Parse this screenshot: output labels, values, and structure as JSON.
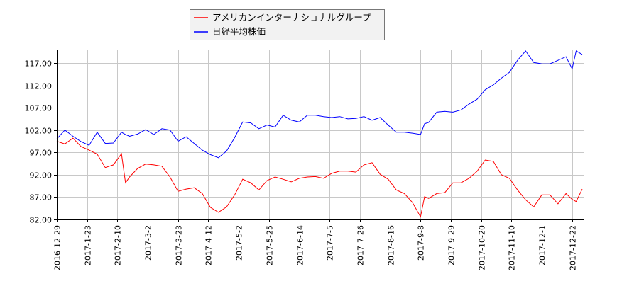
{
  "chart_data": {
    "type": "line",
    "title": "",
    "xlabel": "",
    "ylabel": "",
    "ylim": [
      82,
      120
    ],
    "xlim": [
      0,
      260.7
    ],
    "grid": true,
    "legend_position": "top-center",
    "yticks": [
      82,
      87,
      92,
      97,
      102,
      107,
      112,
      117
    ],
    "ytick_labels": [
      "82.00",
      "87.00",
      "92.00",
      "97.00",
      "102.00",
      "107.00",
      "112.00",
      "117.00"
    ],
    "xticks": [
      0,
      15,
      30,
      45,
      60,
      75,
      90,
      105,
      120,
      135,
      150,
      165,
      180,
      195,
      210,
      225,
      240,
      255
    ],
    "xtick_labels": [
      "2016-12-29",
      "2017-1-23",
      "2017-2-10",
      "2017-3-2",
      "2017-3-23",
      "2017-4-12",
      "2017-5-2",
      "2017-5-25",
      "2017-6-14",
      "2017-7-5",
      "2017-7-26",
      "2017-8-16",
      "2017-9-8",
      "2017-9-29",
      "2017-10-20",
      "2017-11-10",
      "2017-12-1",
      "2017-12-22"
    ],
    "x": [
      0,
      4,
      8,
      12,
      16,
      20,
      24,
      28,
      32,
      34,
      36,
      40,
      44,
      48,
      52,
      56,
      60,
      64,
      68,
      72,
      76,
      80,
      84,
      88,
      92,
      96,
      100,
      104,
      108,
      112,
      116,
      120,
      124,
      128,
      132,
      136,
      140,
      144,
      148,
      152,
      156,
      160,
      164,
      168,
      172,
      176,
      180,
      182,
      184,
      188,
      192,
      196,
      200,
      204,
      208,
      212,
      216,
      220,
      224,
      228,
      232,
      236,
      240,
      244,
      248,
      252,
      255,
      257,
      260
    ],
    "series": [
      {
        "name": "アメリカンインターナショナルグループ",
        "color": "#ff0000",
        "values": [
          99.5,
          98.9,
          100.2,
          98.3,
          97.5,
          96.6,
          93.6,
          94.2,
          96.7,
          90.2,
          91.5,
          93.4,
          94.4,
          94.2,
          93.9,
          91.5,
          88.3,
          88.8,
          89.1,
          87.8,
          84.7,
          83.6,
          84.8,
          87.5,
          91.0,
          90.2,
          88.6,
          90.7,
          91.5,
          91.0,
          90.4,
          91.2,
          91.5,
          91.6,
          91.2,
          92.3,
          92.8,
          92.8,
          92.6,
          94.2,
          94.7,
          92.1,
          91.0,
          88.6,
          87.8,
          85.8,
          82.6,
          87.1,
          86.7,
          87.8,
          88.0,
          90.2,
          90.2,
          91.2,
          92.8,
          95.3,
          95.0,
          92.0,
          91.2,
          88.6,
          86.4,
          84.8,
          87.5,
          87.5,
          85.5,
          87.8,
          86.5,
          86.0,
          88.8
        ]
      },
      {
        "name": "日経平均株価",
        "color": "#0000ff",
        "values": [
          100.0,
          102.0,
          100.6,
          99.4,
          98.6,
          101.5,
          99.0,
          99.1,
          101.5,
          101.0,
          100.6,
          101.1,
          102.1,
          101.0,
          102.3,
          102.0,
          99.5,
          100.5,
          99.0,
          97.5,
          96.5,
          95.8,
          97.3,
          100.3,
          103.8,
          103.6,
          102.3,
          103.1,
          102.7,
          105.3,
          104.2,
          103.8,
          105.3,
          105.3,
          105.0,
          104.8,
          105.0,
          104.5,
          104.6,
          105.0,
          104.2,
          104.8,
          103.1,
          101.5,
          101.5,
          101.3,
          101.0,
          103.4,
          103.7,
          106.0,
          106.2,
          106.0,
          106.5,
          107.8,
          108.9,
          111.0,
          112.1,
          113.6,
          114.9,
          117.6,
          119.7,
          117.1,
          116.8,
          116.8,
          117.6,
          118.4,
          115.7,
          119.7,
          118.9
        ]
      }
    ]
  }
}
